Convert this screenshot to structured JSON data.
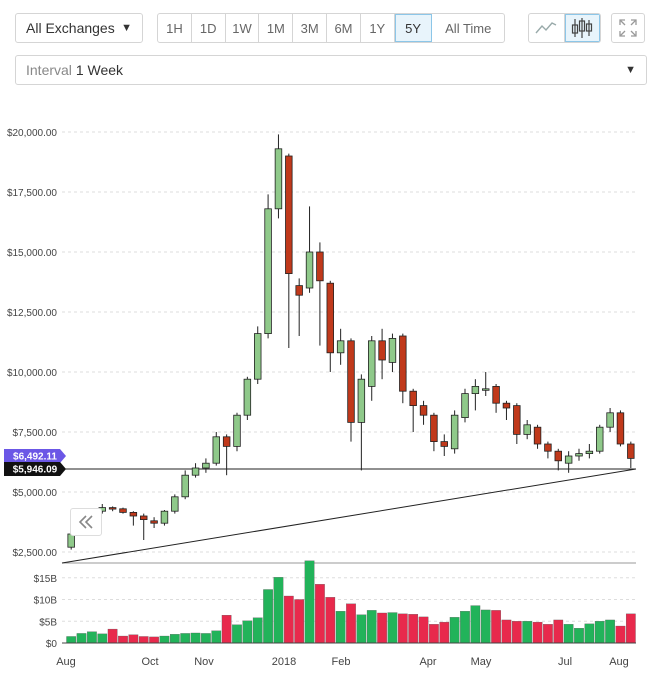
{
  "toolbar": {
    "exchange": "All Exchanges",
    "interval_label": "Interval",
    "interval_value": "1 Week",
    "ranges": [
      "1H",
      "1D",
      "1W",
      "1M",
      "3M",
      "6M",
      "1Y",
      "5Y",
      "All Time"
    ],
    "active_range": "5Y"
  },
  "chart_data": {
    "type": "candlestick",
    "y_ticks": [
      "$20,000.00",
      "$17,500.00",
      "$15,000.00",
      "$12,500.00",
      "$10,000.00",
      "$7,500.00",
      "$5,000.00",
      "$2,500.00"
    ],
    "volume_ticks": [
      "$15B",
      "$10B",
      "$5B",
      "$0"
    ],
    "x_ticks": [
      "Aug",
      "Oct",
      "Nov",
      "2018",
      "Feb",
      "Apr",
      "May",
      "Jul",
      "Aug"
    ],
    "price_labels": {
      "current": "$6,492.11",
      "line": "$5,946.09"
    },
    "candles": [
      [
        2700,
        3250,
        2600,
        3300
      ],
      [
        4100,
        4150,
        4000,
        4200
      ],
      [
        4200,
        4200,
        4150,
        4300
      ],
      [
        4200,
        4350,
        4100,
        4500
      ],
      [
        4350,
        4300,
        4200,
        4400
      ],
      [
        4300,
        4150,
        4100,
        4350
      ],
      [
        4150,
        4000,
        3600,
        4200
      ],
      [
        4000,
        3850,
        3000,
        4100
      ],
      [
        3800,
        3700,
        3500,
        3950
      ],
      [
        3700,
        4200,
        3600,
        4250
      ],
      [
        4200,
        4800,
        4100,
        4900
      ],
      [
        4800,
        5700,
        4700,
        5900
      ],
      [
        5700,
        6000,
        5600,
        6200
      ],
      [
        6000,
        6200,
        5800,
        6400
      ],
      [
        6200,
        7300,
        6100,
        7500
      ],
      [
        7300,
        6900,
        5700,
        7400
      ],
      [
        6900,
        8200,
        6700,
        8300
      ],
      [
        8200,
        9700,
        8000,
        9800
      ],
      [
        9700,
        11600,
        9500,
        11900
      ],
      [
        11600,
        16800,
        11400,
        17400
      ],
      [
        16800,
        19300,
        16400,
        19900
      ],
      [
        19000,
        14100,
        11000,
        19100
      ],
      [
        13600,
        13200,
        11500,
        13900
      ],
      [
        13500,
        15000,
        13300,
        16900
      ],
      [
        15000,
        13800,
        11100,
        15400
      ],
      [
        13700,
        10800,
        10000,
        13800
      ],
      [
        10800,
        11300,
        10300,
        11800
      ],
      [
        11300,
        7900,
        7100,
        11400
      ],
      [
        7900,
        9700,
        5900,
        9900
      ],
      [
        9400,
        11300,
        8800,
        11500
      ],
      [
        11300,
        10500,
        9700,
        11800
      ],
      [
        10400,
        11400,
        10000,
        11600
      ],
      [
        11500,
        9200,
        8700,
        11600
      ],
      [
        9200,
        8600,
        7500,
        9300
      ],
      [
        8600,
        8200,
        7800,
        8800
      ],
      [
        8200,
        7100,
        6700,
        8300
      ],
      [
        7100,
        6900,
        6500,
        7400
      ],
      [
        6800,
        8200,
        6600,
        8400
      ],
      [
        8100,
        9100,
        7900,
        9300
      ],
      [
        9100,
        9400,
        8400,
        9700
      ],
      [
        9300,
        9300,
        9000,
        10000
      ],
      [
        9400,
        8700,
        8300,
        9500
      ],
      [
        8700,
        8500,
        8000,
        8800
      ],
      [
        8600,
        7400,
        7000,
        8700
      ],
      [
        7400,
        7800,
        7200,
        8000
      ],
      [
        7700,
        7000,
        6800,
        7800
      ],
      [
        7000,
        6700,
        6400,
        7100
      ],
      [
        6700,
        6300,
        5900,
        6800
      ],
      [
        6200,
        6500,
        5800,
        6700
      ],
      [
        6500,
        6600,
        6300,
        6800
      ],
      [
        6600,
        6700,
        6400,
        7000
      ],
      [
        6700,
        7700,
        6600,
        7800
      ],
      [
        7700,
        8300,
        7500,
        8500
      ],
      [
        8300,
        7000,
        6900,
        8400
      ],
      [
        7000,
        6400,
        6000,
        7100
      ]
    ],
    "volumes": [
      1.5,
      2.2,
      2.6,
      2.1,
      3.2,
      1.6,
      1.9,
      1.5,
      1.4,
      1.6,
      2.0,
      2.2,
      2.3,
      2.2,
      2.8,
      6.4,
      4.2,
      5.1,
      5.8,
      12.3,
      15.1,
      10.8,
      10.0,
      18.9,
      13.5,
      10.5,
      7.3,
      9.0,
      6.5,
      7.5,
      6.9,
      7.0,
      6.7,
      6.6,
      6.0,
      4.3,
      4.8,
      5.9,
      7.3,
      8.6,
      7.6,
      7.5,
      5.3,
      5.0,
      5.0,
      4.8,
      4.3,
      5.3,
      4.3,
      3.4,
      4.4,
      5.0,
      5.3,
      3.9,
      6.7
    ],
    "ylim": [
      2000,
      20800
    ]
  }
}
